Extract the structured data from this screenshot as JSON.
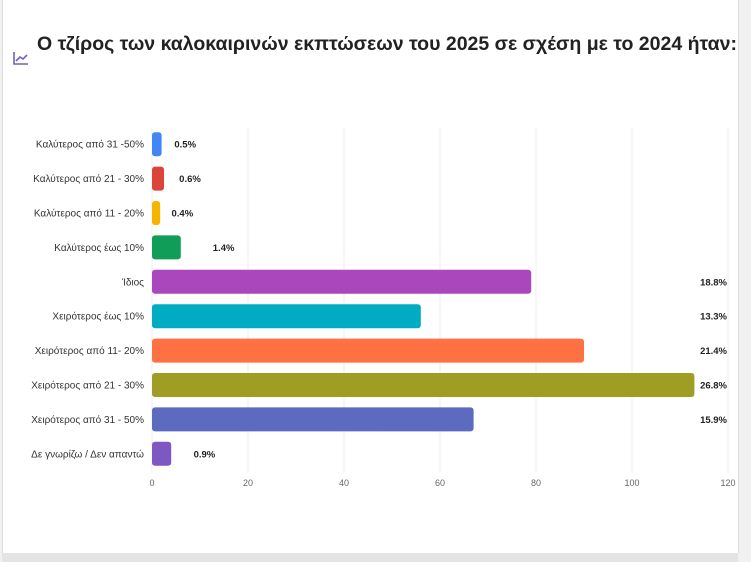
{
  "header": {
    "icon": "line-chart-icon",
    "title": "Ο τζίρος των καλοκαιρινών εκπτώσεων του 2025 σε σχέση με το 2024 ήταν:"
  },
  "chart_data": {
    "type": "bar",
    "orientation": "horizontal",
    "title": "Ο τζίρος των καλοκαιρινών εκπτώσεων του 2025 σε σχέση με το 2024 ήταν:",
    "categories": [
      "Καλύτερος από 31 -50%",
      "Καλύτερος από 21 - 30%",
      "Καλύτερος από 11 - 20%",
      "Καλύτερος έως 10%",
      "Ίδιος",
      "Χειρότερος έως 10%",
      "Χειρότερος από 11- 20%",
      "Χειρότερος από 21 - 30%",
      "Χειρότερος από 31 - 50%",
      "Δε γνωρίζω / Δεν απαντώ"
    ],
    "values": [
      2,
      2.5,
      1.7,
      6,
      79,
      56,
      90,
      113,
      67,
      4
    ],
    "labels": [
      "0.5%",
      "0.6%",
      "0.4%",
      "1.4%",
      "18.8%",
      "13.3%",
      "21.4%",
      "26.8%",
      "15.9%",
      "0.9%"
    ],
    "colors": [
      "#4285f4",
      "#db4437",
      "#f4b400",
      "#0f9d58",
      "#ab47bc",
      "#00acc1",
      "#ff7043",
      "#9e9d24",
      "#5c6bc0",
      "#7e57c2"
    ],
    "xlim": [
      0,
      120
    ],
    "xticks": [
      "0",
      "20",
      "40",
      "60",
      "80",
      "100",
      "120"
    ],
    "xlabel": "",
    "ylabel": "",
    "grid": true,
    "legend": "none"
  }
}
